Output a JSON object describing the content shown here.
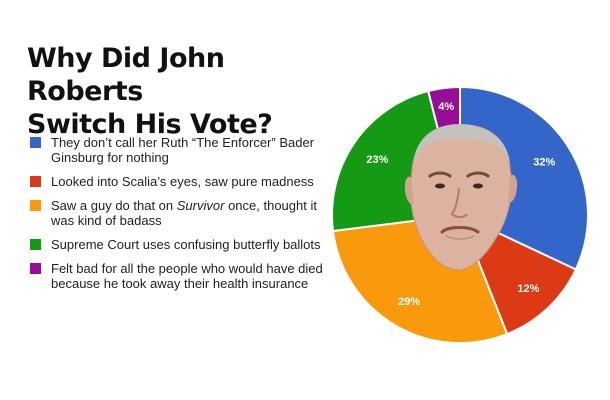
{
  "chart_data": {
    "type": "pie",
    "title_lines": [
      "Why Did John Roberts",
      "Switch His Vote?"
    ],
    "slices": [
      {
        "name_pre": "They don’t call her Ruth “The Enforcer” Bader Ginsburg for nothing",
        "name_em": "",
        "name_post": "",
        "value": 32,
        "label": "32%",
        "color": "#3466c9"
      },
      {
        "name_pre": "Looked into Scalia’s eyes, saw pure madness",
        "name_em": "",
        "name_post": "",
        "value": 12,
        "label": "12%",
        "color": "#dc3a14"
      },
      {
        "name_pre": "Saw a guy do that on ",
        "name_em": "Survivor",
        "name_post": " once, thought it was kind of badass",
        "value": 29,
        "label": "29%",
        "color": "#f89a0c"
      },
      {
        "name_pre": "Supreme Court uses confusing butterfly ballots",
        "name_em": "",
        "name_post": "",
        "value": 23,
        "label": "23%",
        "color": "#149a14"
      },
      {
        "name_pre": "Felt bad for all the people who would have died because he took away their health insurance",
        "name_em": "",
        "name_post": "",
        "value": 4,
        "label": "4%",
        "color": "#970d97"
      }
    ],
    "start_angle_deg": 0,
    "direction": "clockwise",
    "legend_position": "left"
  },
  "center_image": {
    "icon": "john-roberts-face-photo"
  }
}
